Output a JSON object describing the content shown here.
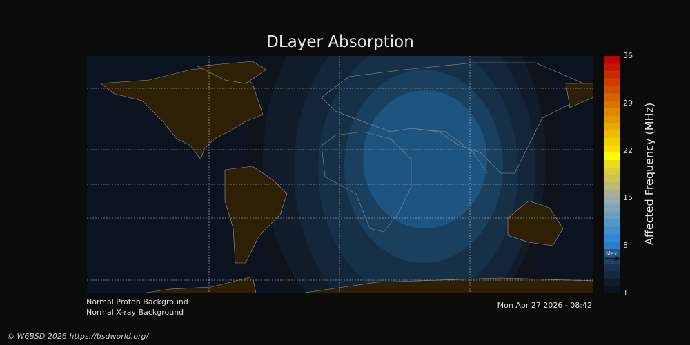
{
  "title": "DLayer Absorption",
  "colorbar": {
    "label": "Affected Frequency (MHz)",
    "ticks": [
      "36",
      "29",
      "22",
      "15",
      "8",
      "1"
    ],
    "range": [
      1,
      36
    ],
    "max_marker_label": "Max",
    "max_value": 6.1,
    "colors": [
      "#0d1320",
      "#101c2c",
      "#14273b",
      "#183150",
      "#1c4566",
      "#205a88",
      "#2a7fc8",
      "#3388d4",
      "#4290cc",
      "#5597c4",
      "#6a9fbe",
      "#7ea6b8",
      "#92acb0",
      "#a6b198",
      "#b9b77a",
      "#cbc352",
      "#dccf36",
      "#eade22",
      "#ffff00",
      "#f5e100",
      "#f0cf00",
      "#ecbc00",
      "#e9aa00",
      "#e49800",
      "#df8800",
      "#da7400",
      "#d46200",
      "#cf5000",
      "#cc3f00",
      "#c92c00",
      "#c51800",
      "#bf0000"
    ]
  },
  "status": {
    "proton": "Normal Proton Background",
    "xray": "Normal X-ray Background",
    "timestamp": "Mon Apr 27 2026 - 08:42"
  },
  "copyright": "© W6BSD 2026 https://bsdworld.org/",
  "absorption_levels_mhz": [
    1,
    2,
    3,
    4,
    5,
    6
  ]
}
